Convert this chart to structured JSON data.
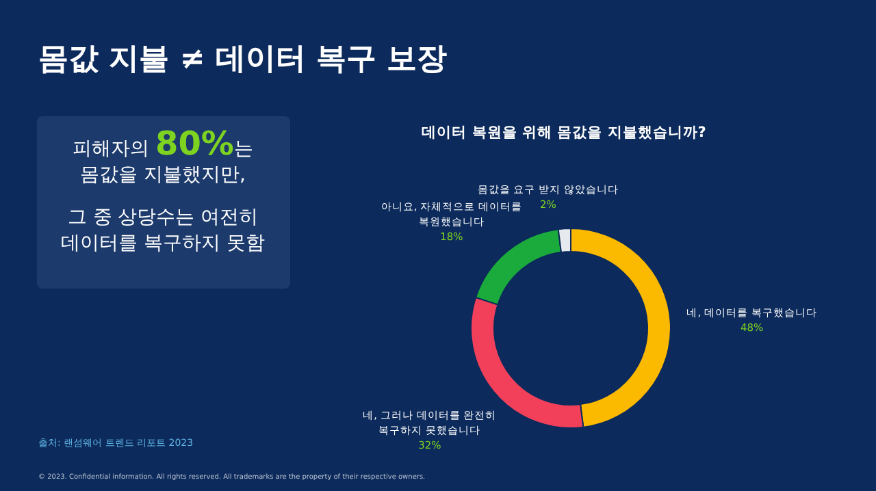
{
  "chart_data": {
    "type": "donut",
    "title": "몸값 지불 ≠ 데이터 복구 보장",
    "subtitle": "데이터 복원을 위해 몸값을 지불했습니까?",
    "categories": [
      "네, 데이터를 복구했습니다",
      "네, 그러나 데이터를 완전히 복구하지 못했습니다",
      "아니요, 자체적으로 데이터를 복원했습니다",
      "몸값을 요구 받지 않았습니다"
    ],
    "values": [
      48,
      32,
      18,
      2
    ],
    "value_labels": [
      "48%",
      "32%",
      "18%",
      "2%"
    ],
    "colors": [
      "#fbb900",
      "#f2405b",
      "#1aab3c",
      "#e6e9ee"
    ],
    "annotations": [
      "피해자의 80%는 몸값을 지불했지만,",
      "그 중 상당수는 여전히 데이터를 복구하지 못함",
      "출처: 랜섬웨어 트렌드 리포트 2023",
      "© 2023. Confidential information. All rights reserved. All trademarks are the property of their respective owners."
    ]
  }
}
